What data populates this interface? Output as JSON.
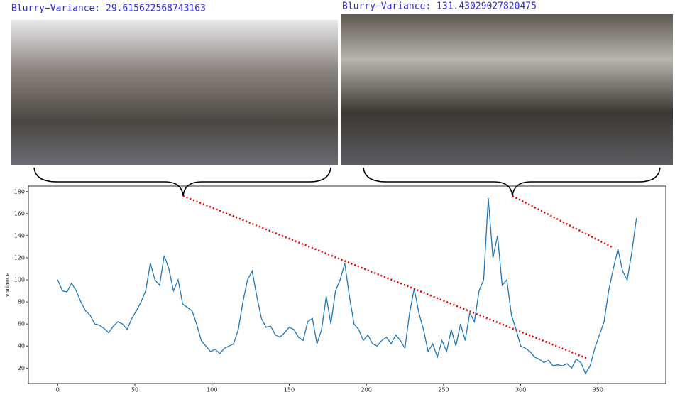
{
  "chart_data": {
    "type": "line",
    "annotations": [
      "Blurry−Variance: 29.615622568743163",
      "Blurry−Variance: 131.43029027820475"
    ],
    "y_label": "variance",
    "x": [
      0,
      3,
      6,
      9,
      12,
      15,
      18,
      21,
      24,
      27,
      30,
      33,
      36,
      39,
      42,
      45,
      48,
      51,
      54,
      57,
      60,
      63,
      66,
      69,
      72,
      75,
      78,
      81,
      84,
      87,
      90,
      93,
      96,
      99,
      102,
      105,
      108,
      111,
      114,
      117,
      120,
      123,
      126,
      129,
      132,
      135,
      138,
      141,
      144,
      147,
      150,
      153,
      156,
      159,
      162,
      165,
      168,
      171,
      174,
      177,
      180,
      183,
      186,
      189,
      192,
      195,
      198,
      201,
      204,
      207,
      210,
      213,
      216,
      219,
      222,
      225,
      228,
      231,
      234,
      237,
      240,
      243,
      246,
      249,
      252,
      255,
      258,
      261,
      264,
      267,
      270,
      273,
      276,
      279,
      282,
      285,
      288,
      291,
      294,
      297,
      300,
      303,
      306,
      309,
      312,
      315,
      318,
      321,
      324,
      327,
      330,
      333,
      336,
      339,
      342,
      345,
      348,
      351,
      354,
      357,
      360,
      363,
      366,
      369,
      372,
      375
    ],
    "series": [
      {
        "name": "variance",
        "color": "#1f77b4",
        "values": [
          100,
          90,
          89,
          97,
          90,
          80,
          72,
          68,
          60,
          59,
          56,
          52,
          58,
          62,
          60,
          55,
          65,
          72,
          80,
          90,
          115,
          100,
          95,
          122,
          110,
          90,
          100,
          78,
          75,
          72,
          60,
          45,
          40,
          35,
          37,
          33,
          38,
          40,
          42,
          55,
          80,
          100,
          108,
          85,
          65,
          57,
          58,
          50,
          48,
          52,
          57,
          55,
          48,
          45,
          62,
          65,
          42,
          55,
          85,
          60,
          90,
          100,
          115,
          85,
          60,
          55,
          45,
          50,
          42,
          40,
          45,
          48,
          42,
          50,
          45,
          38,
          70,
          92,
          70,
          55,
          35,
          42,
          30,
          45,
          35,
          55,
          40,
          60,
          45,
          70,
          62,
          90,
          100,
          174,
          120,
          140,
          95,
          100,
          68,
          55,
          40,
          38,
          35,
          30,
          28,
          25,
          27,
          22,
          23,
          22,
          24,
          20,
          28,
          25,
          15,
          22,
          38,
          50,
          62,
          90,
          110,
          128,
          108,
          100,
          125,
          156
        ]
      }
    ],
    "xlim": [
      -19,
      394
    ],
    "ylim": [
      6,
      185
    ],
    "xticks": [
      0,
      50,
      100,
      150,
      200,
      250,
      300,
      350
    ],
    "yticks": [
      20,
      40,
      60,
      80,
      100,
      120,
      140,
      160,
      180
    ]
  }
}
